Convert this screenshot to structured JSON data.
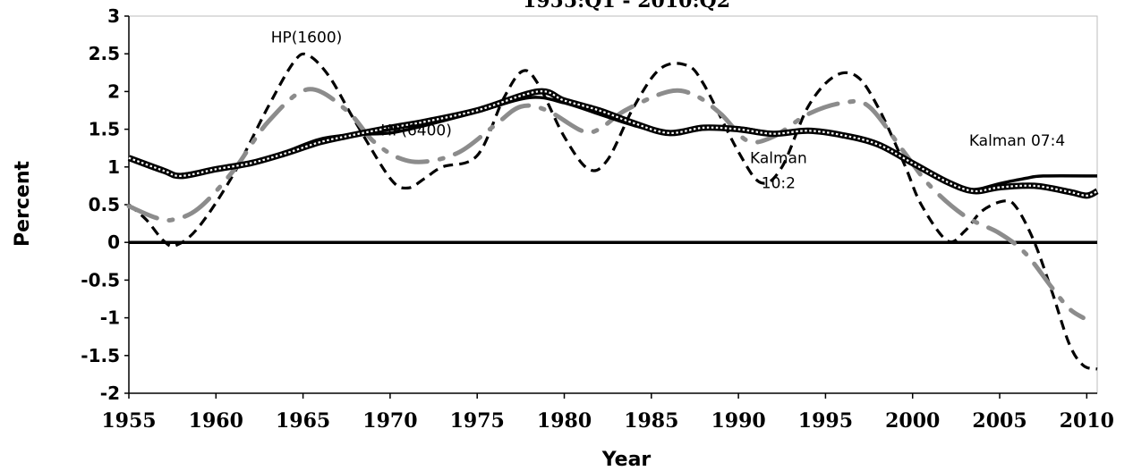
{
  "chart_data": {
    "type": "line",
    "title": "1955:Q1 - 2010:Q2",
    "xlabel": "Year",
    "ylabel": "Percent",
    "xlim": [
      1955,
      2010.6
    ],
    "ylim": [
      -2,
      3
    ],
    "x_ticks": [
      "1955",
      "1960",
      "1965",
      "1970",
      "1975",
      "1980",
      "1985",
      "1990",
      "1995",
      "2000",
      "2005",
      "2010"
    ],
    "y_ticks": [
      "3",
      "2.5",
      "2",
      "1.5",
      "1",
      "0.5",
      "0",
      "-0.5",
      "-1",
      "-1.5",
      "-2"
    ],
    "grid": false,
    "annotations": [
      {
        "text": "HP(1600)",
        "x": 1965.2,
        "y": 2.65
      },
      {
        "text": "HP(6400)",
        "x": 1971.5,
        "y": 1.42
      },
      {
        "text": "Kalman",
        "x": 1992.3,
        "y": 1.05
      },
      {
        "text": "10:2",
        "x": 1992.3,
        "y": 0.72
      },
      {
        "text": "Kalman 07:4",
        "x": 2006.0,
        "y": 1.28
      }
    ],
    "series": [
      {
        "name": "HP(1600)",
        "style": "dashed-black",
        "color": "#000000",
        "points": [
          [
            1955,
            0.5
          ],
          [
            1956,
            0.3
          ],
          [
            1957,
            0.02
          ],
          [
            1957.7,
            -0.04
          ],
          [
            1959,
            0.2
          ],
          [
            1961,
            0.9
          ],
          [
            1963,
            1.8
          ],
          [
            1964.5,
            2.4
          ],
          [
            1965.3,
            2.48
          ],
          [
            1966.5,
            2.2
          ],
          [
            1968,
            1.6
          ],
          [
            1970,
            0.85
          ],
          [
            1971,
            0.72
          ],
          [
            1972,
            0.85
          ],
          [
            1973,
            1.0
          ],
          [
            1975,
            1.15
          ],
          [
            1976.5,
            1.9
          ],
          [
            1977.6,
            2.27
          ],
          [
            1978.5,
            2.1
          ],
          [
            1980,
            1.4
          ],
          [
            1981.4,
            0.97
          ],
          [
            1982.5,
            1.1
          ],
          [
            1984,
            1.8
          ],
          [
            1985.5,
            2.3
          ],
          [
            1987,
            2.35
          ],
          [
            1988,
            2.1
          ],
          [
            1990,
            1.2
          ],
          [
            1991.3,
            0.79
          ],
          [
            1992.5,
            1.0
          ],
          [
            1994,
            1.8
          ],
          [
            1995.5,
            2.2
          ],
          [
            1996.8,
            2.2
          ],
          [
            1998,
            1.8
          ],
          [
            1999.5,
            1.05
          ],
          [
            2000.5,
            0.5
          ],
          [
            2002,
            0.02
          ],
          [
            2003,
            0.15
          ],
          [
            2004,
            0.42
          ],
          [
            2005.3,
            0.55
          ],
          [
            2006,
            0.45
          ],
          [
            2007,
            0.0
          ],
          [
            2008,
            -0.65
          ],
          [
            2009,
            -1.35
          ],
          [
            2009.8,
            -1.63
          ],
          [
            2010.6,
            -1.68
          ]
        ]
      },
      {
        "name": "HP(6400)",
        "style": "long-dash-dot-gray",
        "color": "#8c8c8c",
        "points": [
          [
            1955,
            0.48
          ],
          [
            1956.5,
            0.33
          ],
          [
            1957.5,
            0.3
          ],
          [
            1959,
            0.45
          ],
          [
            1961,
            0.95
          ],
          [
            1963,
            1.6
          ],
          [
            1965.3,
            2.03
          ],
          [
            1967.5,
            1.75
          ],
          [
            1969,
            1.35
          ],
          [
            1970.5,
            1.12
          ],
          [
            1972,
            1.07
          ],
          [
            1974,
            1.2
          ],
          [
            1976,
            1.55
          ],
          [
            1977.5,
            1.8
          ],
          [
            1979,
            1.75
          ],
          [
            1981,
            1.48
          ],
          [
            1982,
            1.5
          ],
          [
            1983.5,
            1.75
          ],
          [
            1986,
            2.0
          ],
          [
            1987.5,
            1.95
          ],
          [
            1989,
            1.7
          ],
          [
            1990.5,
            1.35
          ],
          [
            1992,
            1.4
          ],
          [
            1994,
            1.7
          ],
          [
            1996,
            1.85
          ],
          [
            1997.5,
            1.8
          ],
          [
            1999.5,
            1.2
          ],
          [
            2001,
            0.75
          ],
          [
            2003,
            0.35
          ],
          [
            2005,
            0.12
          ],
          [
            2006.5,
            -0.15
          ],
          [
            2008,
            -0.6
          ],
          [
            2009,
            -0.88
          ],
          [
            2009.8,
            -1.0
          ]
        ]
      },
      {
        "name": "Kalman 07:4",
        "style": "solid-black",
        "color": "#000000",
        "points": [
          [
            1955,
            1.1
          ],
          [
            1957,
            0.93
          ],
          [
            1958,
            0.9
          ],
          [
            1960,
            0.98
          ],
          [
            1962,
            1.05
          ],
          [
            1964,
            1.2
          ],
          [
            1966,
            1.37
          ],
          [
            1968,
            1.43
          ],
          [
            1970,
            1.45
          ],
          [
            1972,
            1.55
          ],
          [
            1975,
            1.73
          ],
          [
            1978,
            1.92
          ],
          [
            1980,
            1.85
          ],
          [
            1982,
            1.7
          ],
          [
            1984,
            1.55
          ],
          [
            1986,
            1.45
          ],
          [
            1988,
            1.5
          ],
          [
            1990,
            1.52
          ],
          [
            1992,
            1.45
          ],
          [
            1994,
            1.47
          ],
          [
            1996,
            1.42
          ],
          [
            1998,
            1.3
          ],
          [
            2000,
            1.05
          ],
          [
            2002,
            0.78
          ],
          [
            2003.5,
            0.7
          ],
          [
            2005,
            0.78
          ],
          [
            2006.5,
            0.85
          ],
          [
            2007.5,
            0.88
          ],
          [
            2010.6,
            0.88
          ]
        ]
      },
      {
        "name": "Kalman 10:2",
        "style": "dotted-outline-black",
        "color": "#000000",
        "points": [
          [
            1955,
            1.12
          ],
          [
            1957,
            0.95
          ],
          [
            1958,
            0.88
          ],
          [
            1960,
            0.97
          ],
          [
            1962,
            1.05
          ],
          [
            1964,
            1.18
          ],
          [
            1966,
            1.33
          ],
          [
            1968,
            1.43
          ],
          [
            1970,
            1.52
          ],
          [
            1972,
            1.6
          ],
          [
            1975,
            1.75
          ],
          [
            1978.5,
            2.0
          ],
          [
            1980,
            1.88
          ],
          [
            1982,
            1.75
          ],
          [
            1984,
            1.58
          ],
          [
            1986,
            1.45
          ],
          [
            1988,
            1.52
          ],
          [
            1990,
            1.5
          ],
          [
            1992,
            1.44
          ],
          [
            1994,
            1.48
          ],
          [
            1996,
            1.42
          ],
          [
            1998,
            1.3
          ],
          [
            2000,
            1.05
          ],
          [
            2002,
            0.8
          ],
          [
            2003.5,
            0.68
          ],
          [
            2005,
            0.73
          ],
          [
            2007,
            0.75
          ],
          [
            2009,
            0.67
          ],
          [
            2010,
            0.62
          ],
          [
            2010.6,
            0.68
          ]
        ]
      }
    ]
  }
}
